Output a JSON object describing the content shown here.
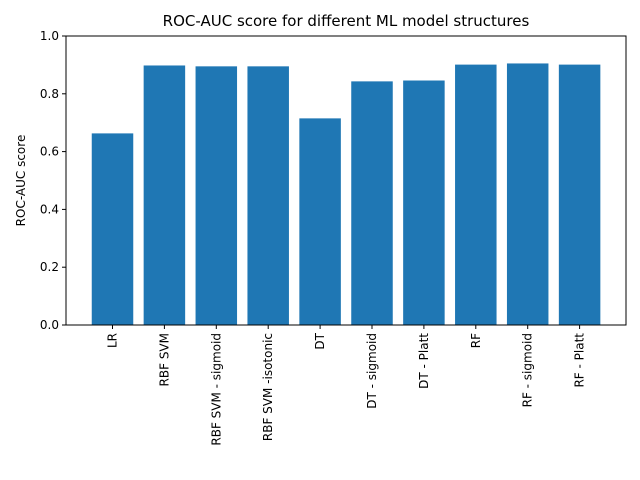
{
  "chart_data": {
    "type": "bar",
    "title": "ROC-AUC score for different ML model structures",
    "xlabel": "",
    "ylabel": "ROC-AUC score",
    "ylim": [
      0,
      1.0
    ],
    "yticks": [
      "0.0",
      "0.2",
      "0.4",
      "0.6",
      "0.8",
      "1.0"
    ],
    "categories": [
      "LR",
      "RBF SVM",
      "RBF SVM - sigmoid",
      "RBF SVM -isotonic",
      "DT",
      "DT - sigmoid",
      "DT - Platt",
      "RF",
      "RF - sigmoid",
      "RF - Platt"
    ],
    "values": [
      0.663,
      0.898,
      0.895,
      0.895,
      0.715,
      0.843,
      0.846,
      0.901,
      0.905,
      0.901
    ],
    "bar_color": "#1f77b4",
    "grid": false,
    "legend": "none"
  }
}
